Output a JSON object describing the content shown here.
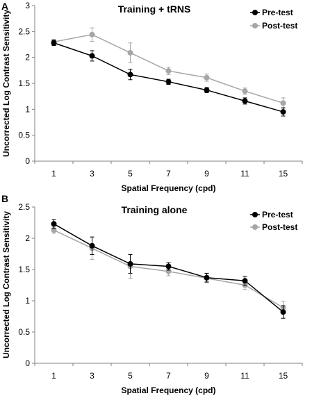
{
  "chart_data": [
    {
      "panel_label": "A",
      "type": "line",
      "title": "Training + tRNS",
      "xlabel": "Spatial Frequency (cpd)",
      "ylabel": "Uncorrected Log Contrast Sensitivity",
      "categories": [
        "1",
        "3",
        "5",
        "7",
        "9",
        "11",
        "15"
      ],
      "ylim": [
        0,
        3
      ],
      "yticks": [
        "0",
        "0.5",
        "1",
        "1.5",
        "2",
        "2.5",
        "3"
      ],
      "grid": false,
      "legend": "top-right",
      "series": [
        {
          "name": "Pre-test",
          "color": "#000000",
          "values": [
            2.28,
            2.03,
            1.67,
            1.53,
            1.37,
            1.16,
            0.95
          ],
          "errors": [
            0.05,
            0.1,
            0.1,
            0.05,
            0.05,
            0.06,
            0.08
          ]
        },
        {
          "name": "Post-test",
          "color": "#a6a6a6",
          "values": [
            2.3,
            2.44,
            2.09,
            1.74,
            1.61,
            1.35,
            1.12
          ],
          "errors": [
            0.05,
            0.13,
            0.19,
            0.07,
            0.07,
            0.06,
            0.1
          ]
        }
      ]
    },
    {
      "panel_label": "B",
      "type": "line",
      "title": "Training alone",
      "xlabel": "Spatial Frequency (cpd)",
      "ylabel": "Uncorrected Log Contrast Sensitivity",
      "categories": [
        "1",
        "3",
        "5",
        "7",
        "9",
        "11",
        "15"
      ],
      "ylim": [
        0,
        2.5
      ],
      "yticks": [
        "0",
        "0.5",
        "1",
        "1.5",
        "2",
        "2.5"
      ],
      "grid": false,
      "legend": "top-right",
      "series": [
        {
          "name": "Pre-test",
          "color": "#000000",
          "values": [
            2.23,
            1.88,
            1.59,
            1.55,
            1.37,
            1.32,
            0.82
          ],
          "errors": [
            0.07,
            0.14,
            0.15,
            0.06,
            0.07,
            0.07,
            0.1
          ]
        },
        {
          "name": "Post-test",
          "color": "#a6a6a6",
          "values": [
            2.13,
            1.84,
            1.55,
            1.47,
            1.36,
            1.25,
            0.89
          ],
          "errors": [
            0.05,
            0.18,
            0.19,
            0.07,
            0.07,
            0.07,
            0.1
          ]
        }
      ]
    }
  ]
}
